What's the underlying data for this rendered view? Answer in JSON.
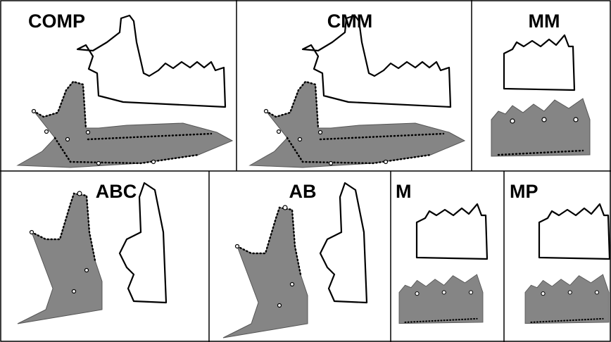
{
  "panels": [
    {
      "label": "COMP"
    },
    {
      "label": "CMM"
    },
    {
      "label": "MM"
    },
    {
      "label": "ABC"
    },
    {
      "label": "AB"
    },
    {
      "label": "M"
    },
    {
      "label": "MP"
    }
  ]
}
